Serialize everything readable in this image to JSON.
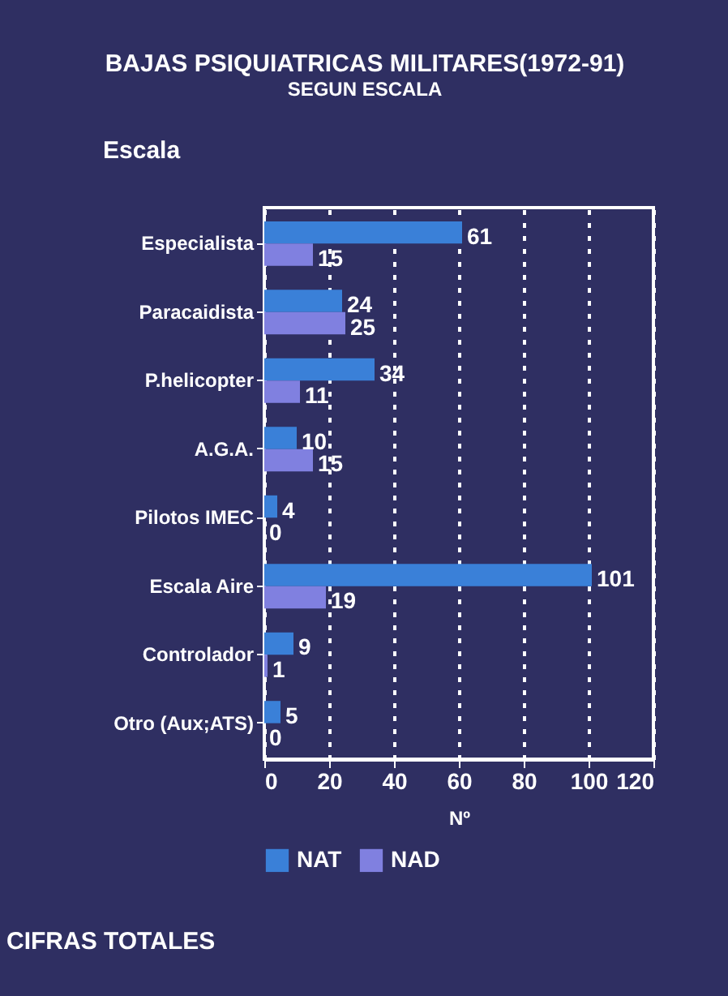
{
  "chart_data": {
    "type": "bar",
    "orientation": "horizontal",
    "title": "BAJAS PSIQUIATRICAS MILITARES(1972-91)",
    "subtitle": "SEGUN ESCALA",
    "ylabel": "Escala",
    "xlabel": "Nº",
    "categories": [
      "Especialista",
      "Paracaidista",
      "P.helicopter",
      "A.G.A.",
      "Pilotos IMEC",
      "Escala Aire",
      "Controlador",
      "Otro (Aux;ATS)"
    ],
    "series": [
      {
        "name": "NAT",
        "color": "#3a80d8",
        "values": [
          61,
          24,
          34,
          10,
          4,
          101,
          9,
          5
        ]
      },
      {
        "name": "NAD",
        "color": "#8080e0",
        "values": [
          15,
          25,
          11,
          15,
          0,
          19,
          1,
          0
        ]
      }
    ],
    "xlim": [
      0,
      120
    ],
    "xticks": [
      0,
      20,
      40,
      60,
      80,
      100,
      120
    ],
    "grid": "x",
    "legend": "bottom",
    "data_labels": true,
    "annotations": [
      "CIFRAS TOTALES"
    ]
  }
}
